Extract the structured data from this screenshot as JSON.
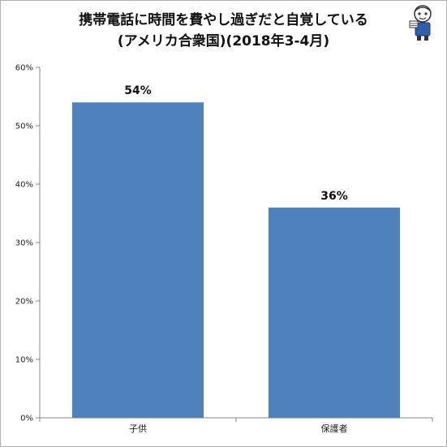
{
  "title": {
    "line1": "携帯電話に時間を費やし過ぎだと自覚している",
    "line2": "(アメリカ合衆国)(2018年3-4月)"
  },
  "colors": {
    "bar": "#4f81bd",
    "axis": "#868686",
    "text": "#111111"
  },
  "mascot_icon": "newspaper-mascot-icon",
  "chart_data": {
    "type": "bar",
    "title": "携帯電話に時間を費やし過ぎだと自覚している (アメリカ合衆国)(2018年3-4月)",
    "categories": [
      "子供",
      "保護者"
    ],
    "values": [
      54,
      36
    ],
    "data_labels": [
      "54%",
      "36%"
    ],
    "ylim": [
      0,
      60
    ],
    "yticks": [
      0,
      10,
      20,
      30,
      40,
      50,
      60
    ],
    "ytick_labels": [
      "0%",
      "10%",
      "20%",
      "30%",
      "40%",
      "50%",
      "60%"
    ],
    "xlabel": "",
    "ylabel": "",
    "grid": false,
    "legend": "none"
  }
}
